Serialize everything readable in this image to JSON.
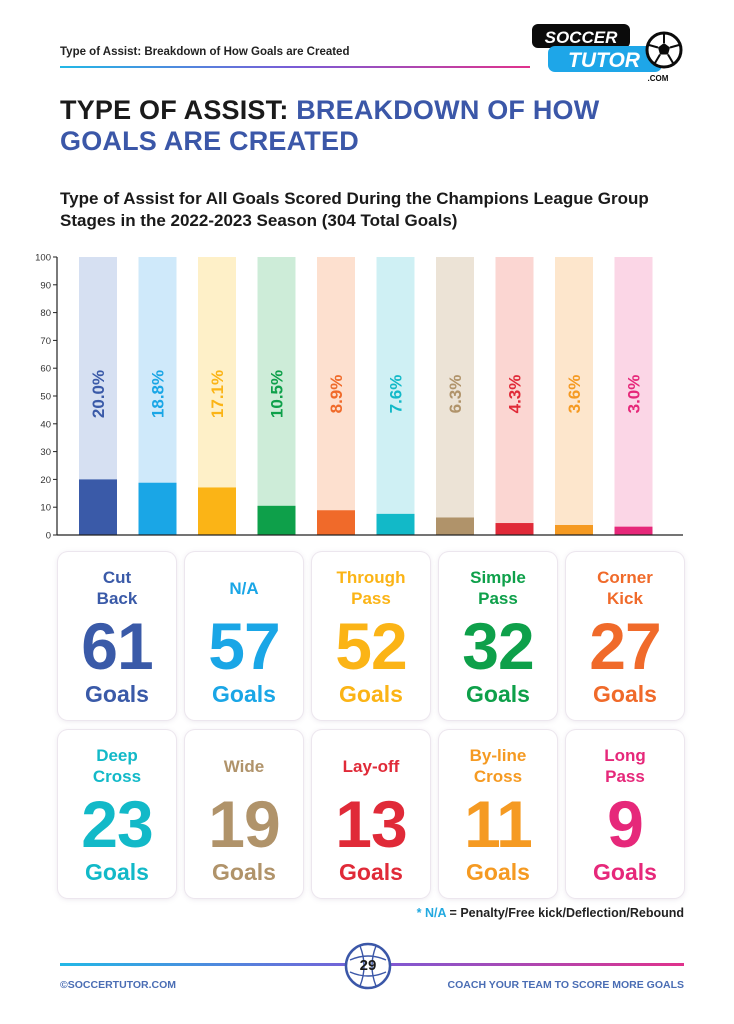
{
  "header": {
    "running_title": "Type of Assist: Breakdown of How Goals are Created",
    "logo": {
      "line1": "SOCCER",
      "line2": "TUTOR",
      "suffix": ".COM",
      "icon": "soccer-ball-icon"
    }
  },
  "title": {
    "part1": "TYPE OF ASSIST: ",
    "part2": "BREAKDOWN OF HOW GOALS ARE CREATED"
  },
  "subtitle": "Type of Assist for All Goals Scored During the Champions League Group Stages in the 2022-2023 Season (304 Total Goals)",
  "chart_data": {
    "type": "bar",
    "ylim": [
      0,
      100
    ],
    "yticks": [
      "0",
      "10",
      "20",
      "30",
      "40",
      "50",
      "60",
      "70",
      "80",
      "90",
      "100"
    ],
    "grid": false,
    "legend": "none",
    "values": [
      20.0,
      18.8,
      17.1,
      10.5,
      8.9,
      7.6,
      6.3,
      4.3,
      3.6,
      3.0
    ],
    "data_labels": [
      "20.0%",
      "18.8%",
      "17.1%",
      "10.5%",
      "8.9%",
      "7.6%",
      "6.3%",
      "4.3%",
      "3.6%",
      "3.0%"
    ],
    "colors": [
      "#3a5aa8",
      "#1aa6e6",
      "#fbb416",
      "#0ea04a",
      "#f06a2a",
      "#12b9c8",
      "#b0936a",
      "#e02a38",
      "#f59a22",
      "#e6287a"
    ],
    "background_colors": [
      "#d6e0f2",
      "#cfe9fa",
      "#fef0c8",
      "#cdecd8",
      "#fde0cf",
      "#cff0f4",
      "#ece3d6",
      "#fbd6d2",
      "#fde6cc",
      "#fbd6e6"
    ]
  },
  "cards": [
    {
      "label": "Cut Back",
      "count": "61",
      "unit": "Goals",
      "color": "#3a5aa8"
    },
    {
      "label": "N/A",
      "count": "57",
      "unit": "Goals",
      "color": "#1aa6e6"
    },
    {
      "label": "Through Pass",
      "count": "52",
      "unit": "Goals",
      "color": "#fbb416"
    },
    {
      "label": "Simple Pass",
      "count": "32",
      "unit": "Goals",
      "color": "#0ea04a"
    },
    {
      "label": "Corner Kick",
      "count": "27",
      "unit": "Goals",
      "color": "#f06a2a"
    },
    {
      "label": "Deep Cross",
      "count": "23",
      "unit": "Goals",
      "color": "#12b9c8"
    },
    {
      "label": "Wide",
      "count": "19",
      "unit": "Goals",
      "color": "#b0936a"
    },
    {
      "label": "Lay-off",
      "count": "13",
      "unit": "Goals",
      "color": "#e02a38"
    },
    {
      "label": "By-line Cross",
      "count": "11",
      "unit": "Goals",
      "color": "#f59a22"
    },
    {
      "label": "Long Pass",
      "count": "9",
      "unit": "Goals",
      "color": "#e6287a"
    }
  ],
  "footnote": {
    "marker": "* N/A",
    "text": " = Penalty/Free kick/Deflection/Rebound"
  },
  "footer": {
    "left": "©SOCCERTUTOR.COM",
    "page": "29",
    "right": "COACH YOUR TEAM TO SCORE MORE GOALS"
  }
}
